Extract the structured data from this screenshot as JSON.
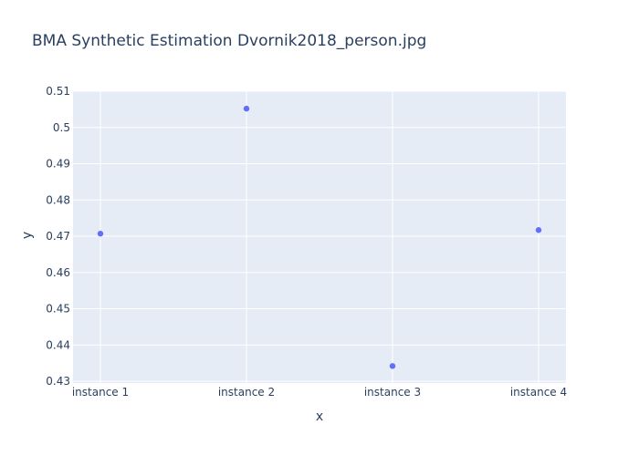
{
  "chart_data": {
    "type": "scatter",
    "title": "BMA Synthetic Estimation Dvornik2018_person.jpg",
    "xlabel": "x",
    "ylabel": "y",
    "categories": [
      "instance 1",
      "instance 2",
      "instance 3",
      "instance 4"
    ],
    "series": [
      {
        "values": [
          0.4707,
          0.5052,
          0.4342,
          0.4717
        ]
      }
    ],
    "ylim": [
      0.4295,
      0.51
    ],
    "yticks": [
      0.43,
      0.44,
      0.45,
      0.46,
      0.47,
      0.48,
      0.49,
      0.5,
      0.51
    ],
    "ytick_labels": [
      "0.43",
      "0.44",
      "0.45",
      "0.46",
      "0.47",
      "0.48",
      "0.49",
      "0.5",
      "0.51"
    ],
    "grid": true,
    "legend": "none",
    "colors": {
      "plot_background": "#e5ecf6",
      "grid": "#ffffff",
      "marker": "#636efa",
      "text": "#2a3f5f"
    }
  }
}
